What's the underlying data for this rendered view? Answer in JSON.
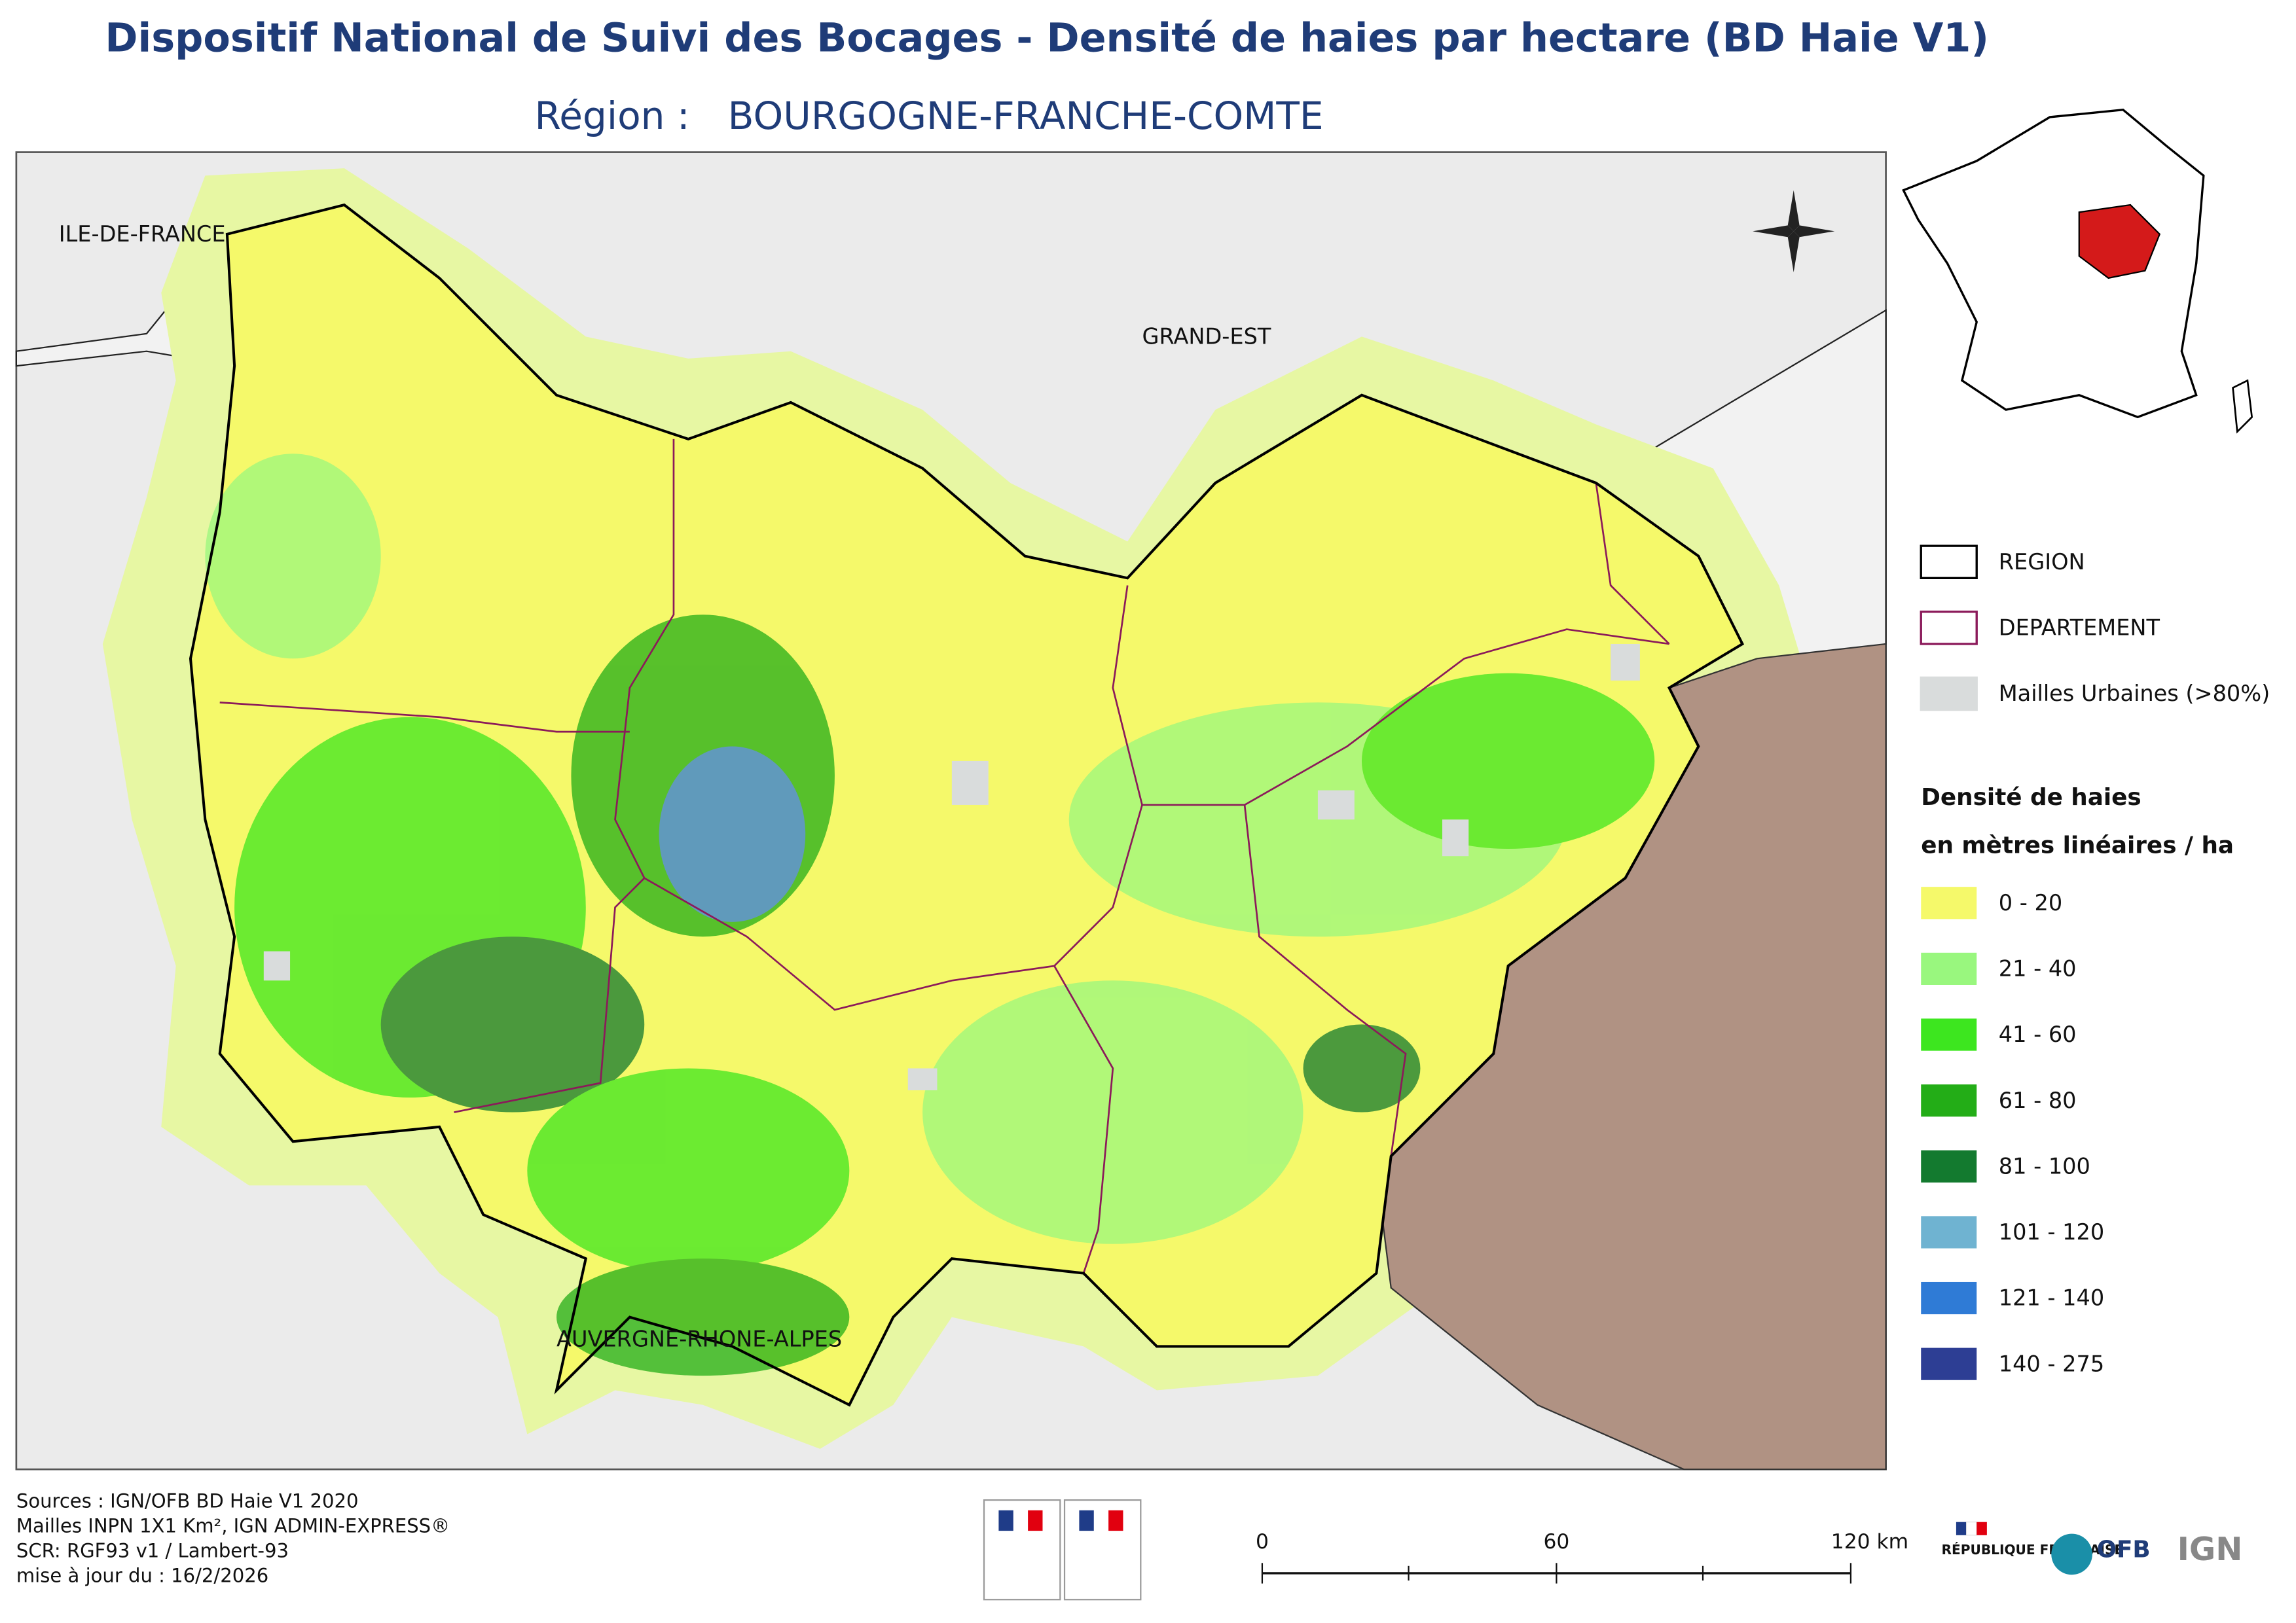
{
  "header": {
    "title": "Dispositif National de Suivi des Bocages - Densité de haies par hectare (BD Haie V1)",
    "region_label": "Région :",
    "region_name": "BOURGOGNE-FRANCHE-COMTE"
  },
  "map": {
    "places": [
      "ILE-DE-FRANCE",
      "GRAND-EST",
      "AUVERGNE-RHONE-ALPES"
    ]
  },
  "legend": {
    "boundaries": [
      {
        "label": "REGION",
        "stroke": "#000000",
        "fill": "#ffffff"
      },
      {
        "label": "DEPARTEMENT",
        "stroke": "#8b1a5a",
        "fill": "#ffffff"
      },
      {
        "label": "Mailles Urbaines (>80%)",
        "stroke": "#d9dcdc",
        "fill": "#d9dcdc"
      }
    ],
    "density_title": [
      "Densité de haies",
      "en mètres linéaires / ha"
    ],
    "classes": [
      {
        "label": "0 - 20",
        "color": "#f5f96a"
      },
      {
        "label": "21 - 40",
        "color": "#99f77e"
      },
      {
        "label": "41 - 60",
        "color": "#3de61f"
      },
      {
        "label": "61 - 80",
        "color": "#23ad17"
      },
      {
        "label": "81 - 100",
        "color": "#137a2f"
      },
      {
        "label": "101 - 120",
        "color": "#6fb3d1"
      },
      {
        "label": "121 - 140",
        "color": "#2f7bd6"
      },
      {
        "label": "140 - 275",
        "color": "#2d3e94"
      }
    ]
  },
  "footer": {
    "sources": [
      "Sources : IGN/OFB BD Haie V1 2020",
      "Mailles INPN 1X1 Km², IGN ADMIN-EXPRESS®",
      "SCR: RGF93 v1 / Lambert-93",
      "mise à jour du : 16/2/2026"
    ],
    "scale": [
      "0",
      "60",
      "120 km"
    ],
    "logos": [
      "RÉPUBLIQUE FRANÇAISE",
      "OFB",
      "IGN"
    ]
  }
}
